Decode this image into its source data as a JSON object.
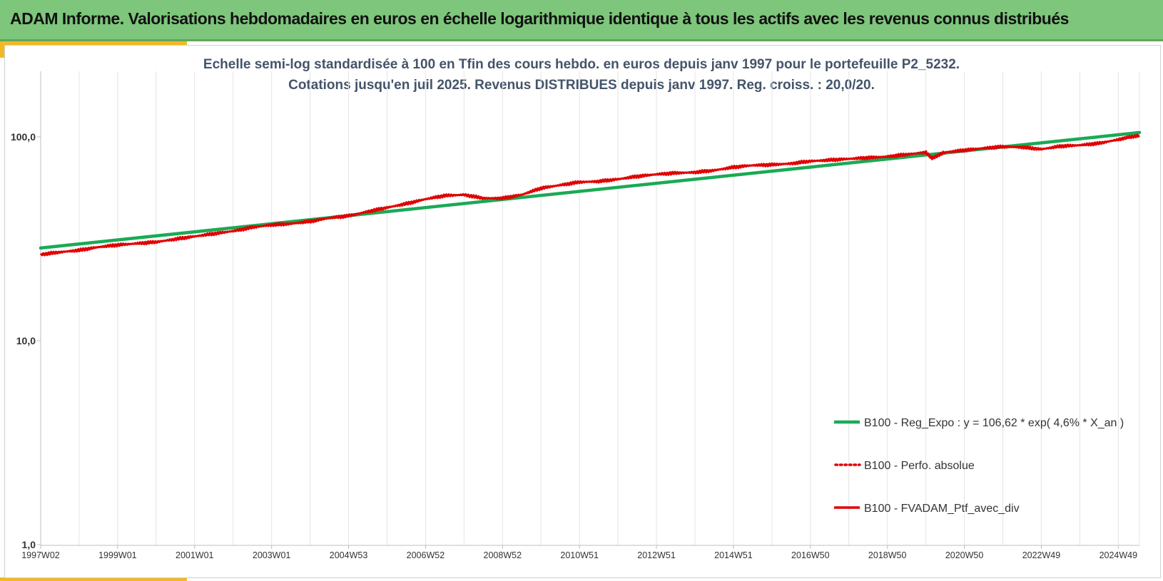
{
  "header": {
    "title": "ADAM Informe. Valorisations hebdomadaires en euros en échelle logarithmique identique à tous les actifs avec les revenus connus distribués"
  },
  "colors": {
    "banner": "#7dc67b",
    "accent": "#f2b823",
    "regression": "#1aaa55",
    "portfolio": "#e00000",
    "subtitle_text": "#44546a"
  },
  "chart_data": {
    "type": "line",
    "title_line1": "Echelle semi-log standardisée  à 100 en Tfin des cours hebdo.  en euros depuis janv 1997 pour  le portefeuille  P2_5232.",
    "title_line2": "Cotations jusqu'en juil 2025. Revenus DISTRIBUES depuis janv 1997. Reg. croiss. : 20,0/20.",
    "y_scale": "log",
    "ylim": [
      1,
      200
    ],
    "y_ticks": [
      {
        "value": 1,
        "label": "1,0"
      },
      {
        "value": 10,
        "label": "10,0"
      },
      {
        "value": 100,
        "label": "100,0"
      }
    ],
    "x_range": [
      1997.0,
      2025.55
    ],
    "x_ticks": [
      {
        "value": 1997.0,
        "label": "1997W02"
      },
      {
        "value": 1999.0,
        "label": "1999W01"
      },
      {
        "value": 2001.0,
        "label": "2001W01"
      },
      {
        "value": 2003.0,
        "label": "2003W01"
      },
      {
        "value": 2005.0,
        "label": "2004W53"
      },
      {
        "value": 2007.0,
        "label": "2006W52"
      },
      {
        "value": 2009.0,
        "label": "2008W52"
      },
      {
        "value": 2011.0,
        "label": "2010W51"
      },
      {
        "value": 2013.0,
        "label": "2012W51"
      },
      {
        "value": 2015.0,
        "label": "2014W51"
      },
      {
        "value": 2017.0,
        "label": "2016W50"
      },
      {
        "value": 2019.0,
        "label": "2018W50"
      },
      {
        "value": 2021.0,
        "label": "2020W50"
      },
      {
        "value": 2023.0,
        "label": "2022W49"
      },
      {
        "value": 2025.0,
        "label": "2024W49"
      }
    ],
    "grid": "vertical",
    "legend_position": "bottom-right",
    "series": [
      {
        "name": "B100 - Reg_Expo : y = 106,62 * exp( 4,6% *  X_an )",
        "style": "solid-thick",
        "color": "#1aaa55",
        "x": [
          1997.0,
          2025.55
        ],
        "y": [
          28.5,
          105.0
        ]
      },
      {
        "name": "B100 - Perfo. absolue",
        "style": "dotted",
        "color": "#e00000",
        "x": [],
        "y": []
      },
      {
        "name": "B100 - FVADAM_Ptf_avec_div",
        "style": "solid",
        "color": "#e00000",
        "x": [
          1997.0,
          1997.5,
          1998.0,
          1998.5,
          1999.0,
          1999.5,
          2000.0,
          2000.5,
          2001.0,
          2001.5,
          2002.0,
          2002.5,
          2003.0,
          2003.5,
          2004.0,
          2004.5,
          2005.0,
          2005.5,
          2006.0,
          2006.5,
          2007.0,
          2007.5,
          2008.0,
          2008.5,
          2009.0,
          2009.5,
          2010.0,
          2010.5,
          2011.0,
          2011.5,
          2012.0,
          2012.5,
          2013.0,
          2013.5,
          2014.0,
          2014.5,
          2015.0,
          2015.5,
          2016.0,
          2016.5,
          2017.0,
          2017.5,
          2018.0,
          2018.5,
          2019.0,
          2019.5,
          2020.0,
          2020.15,
          2020.3,
          2020.5,
          2021.0,
          2021.5,
          2022.0,
          2022.5,
          2023.0,
          2023.5,
          2024.0,
          2024.5,
          2025.0,
          2025.3,
          2025.55
        ],
        "y": [
          26.5,
          27.2,
          27.8,
          28.8,
          29.5,
          30.0,
          30.5,
          31.5,
          32.5,
          33.5,
          34.5,
          36.0,
          37.0,
          37.5,
          38.5,
          40.0,
          41.0,
          43.0,
          45.0,
          47.0,
          49.5,
          51.5,
          52.0,
          50.0,
          50.0,
          52.0,
          56.0,
          58.0,
          60.0,
          60.5,
          62.0,
          64.0,
          65.5,
          66.5,
          67.0,
          68.5,
          71.0,
          72.5,
          73.0,
          74.0,
          76.0,
          77.0,
          78.0,
          79.0,
          80.0,
          82.0,
          84.0,
          78.5,
          81.0,
          84.0,
          86.0,
          88.0,
          89.5,
          89.0,
          87.0,
          90.0,
          91.0,
          93.0,
          97.0,
          100.0,
          101.5
        ]
      }
    ]
  }
}
